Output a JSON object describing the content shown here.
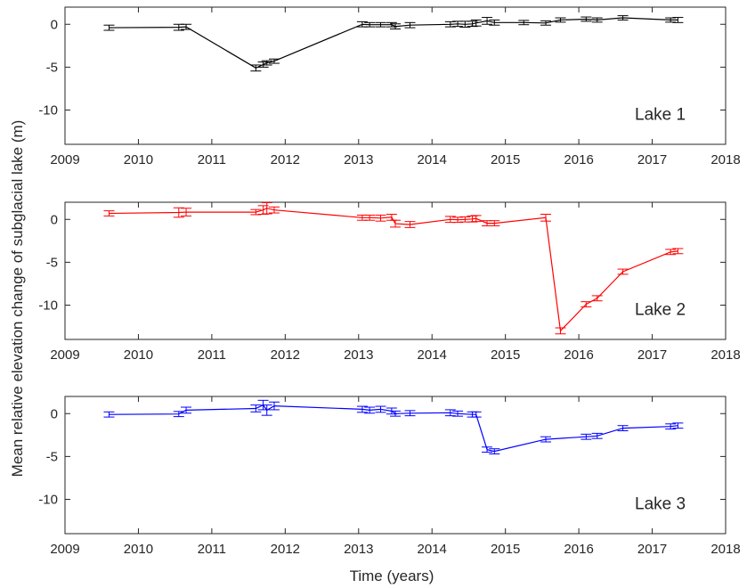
{
  "ylabel": "Mean relative elevation change of subglacial lake (m)",
  "xlabel": "Time (years)",
  "chart_data": [
    {
      "type": "line",
      "title": "",
      "label": "Lake 1",
      "color": "#000000",
      "xlim": [
        2009,
        2018
      ],
      "ylim": [
        -14,
        2
      ],
      "xticks": [
        2009,
        2010,
        2011,
        2012,
        2013,
        2014,
        2015,
        2016,
        2017,
        2018
      ],
      "yticks": [
        0,
        -5,
        -10
      ],
      "grid": false,
      "series": [
        {
          "name": "Lake 1",
          "x": [
            2009.6,
            2010.55,
            2010.65,
            2011.6,
            2011.7,
            2011.75,
            2011.85,
            2013.05,
            2013.15,
            2013.3,
            2013.45,
            2013.5,
            2013.7,
            2014.25,
            2014.35,
            2014.45,
            2014.55,
            2014.6,
            2014.75,
            2014.85,
            2015.25,
            2015.55,
            2015.75,
            2016.1,
            2016.25,
            2016.6,
            2017.25,
            2017.35
          ],
          "y": [
            -0.4,
            -0.35,
            -0.3,
            -5.1,
            -4.7,
            -4.5,
            -4.3,
            0.0,
            -0.05,
            -0.05,
            -0.05,
            -0.25,
            -0.1,
            0.0,
            0.05,
            0.0,
            0.05,
            0.15,
            0.4,
            0.2,
            0.2,
            0.15,
            0.5,
            0.6,
            0.5,
            0.75,
            0.5,
            0.5
          ],
          "err": [
            0.3,
            0.35,
            0.3,
            0.35,
            0.3,
            0.25,
            0.25,
            0.3,
            0.25,
            0.25,
            0.25,
            0.3,
            0.3,
            0.3,
            0.3,
            0.35,
            0.3,
            0.35,
            0.4,
            0.3,
            0.25,
            0.25,
            0.25,
            0.25,
            0.25,
            0.25,
            0.25,
            0.3
          ]
        }
      ]
    },
    {
      "type": "line",
      "title": "",
      "label": "Lake 2",
      "color": "#ff0000",
      "xlim": [
        2009,
        2018
      ],
      "ylim": [
        -14,
        2
      ],
      "xticks": [
        2009,
        2010,
        2011,
        2012,
        2013,
        2014,
        2015,
        2016,
        2017,
        2018
      ],
      "yticks": [
        0,
        -5,
        -10
      ],
      "grid": false,
      "series": [
        {
          "name": "Lake 2",
          "x": [
            2009.6,
            2010.55,
            2010.65,
            2011.6,
            2011.7,
            2011.75,
            2011.85,
            2013.05,
            2013.15,
            2013.3,
            2013.45,
            2013.5,
            2013.7,
            2014.25,
            2014.35,
            2014.45,
            2014.55,
            2014.6,
            2014.75,
            2014.85,
            2015.55,
            2015.75,
            2016.1,
            2016.25,
            2016.6,
            2017.25,
            2017.35
          ],
          "y": [
            0.7,
            0.8,
            0.85,
            0.85,
            1.1,
            1.3,
            1.1,
            0.2,
            0.2,
            0.15,
            0.25,
            -0.5,
            -0.6,
            0.0,
            -0.05,
            0.0,
            0.05,
            0.1,
            -0.45,
            -0.45,
            0.2,
            -13.0,
            -9.9,
            -9.2,
            -6.1,
            -3.8,
            -3.7
          ],
          "err": [
            0.3,
            0.55,
            0.45,
            0.3,
            0.5,
            0.65,
            0.35,
            0.3,
            0.3,
            0.35,
            0.35,
            0.4,
            0.35,
            0.35,
            0.3,
            0.3,
            0.35,
            0.35,
            0.3,
            0.3,
            0.4,
            0.35,
            0.3,
            0.3,
            0.3,
            0.3,
            0.3
          ]
        }
      ]
    },
    {
      "type": "line",
      "title": "",
      "label": "Lake 3",
      "color": "#0000ff",
      "xlim": [
        2009,
        2018
      ],
      "ylim": [
        -14,
        2
      ],
      "xticks": [
        2009,
        2010,
        2011,
        2012,
        2013,
        2014,
        2015,
        2016,
        2017,
        2018
      ],
      "yticks": [
        0,
        -5,
        -10
      ],
      "grid": false,
      "series": [
        {
          "name": "Lake 3",
          "x": [
            2009.6,
            2010.55,
            2010.65,
            2011.6,
            2011.7,
            2011.75,
            2011.85,
            2013.05,
            2013.15,
            2013.3,
            2013.45,
            2013.5,
            2013.7,
            2014.25,
            2014.35,
            2014.55,
            2014.6,
            2014.75,
            2014.85,
            2015.55,
            2016.1,
            2016.25,
            2016.6,
            2017.25,
            2017.35
          ],
          "y": [
            -0.1,
            -0.05,
            0.4,
            0.6,
            1.0,
            0.4,
            0.9,
            0.5,
            0.4,
            0.5,
            0.3,
            0.0,
            0.05,
            0.1,
            0.0,
            -0.1,
            -0.1,
            -4.2,
            -4.4,
            -3.0,
            -2.7,
            -2.6,
            -1.7,
            -1.5,
            -1.4
          ],
          "err": [
            0.3,
            0.3,
            0.35,
            0.4,
            0.55,
            0.6,
            0.45,
            0.35,
            0.35,
            0.35,
            0.35,
            0.3,
            0.3,
            0.35,
            0.3,
            0.3,
            0.3,
            0.3,
            0.3,
            0.3,
            0.3,
            0.3,
            0.3,
            0.3,
            0.3
          ]
        }
      ]
    }
  ]
}
